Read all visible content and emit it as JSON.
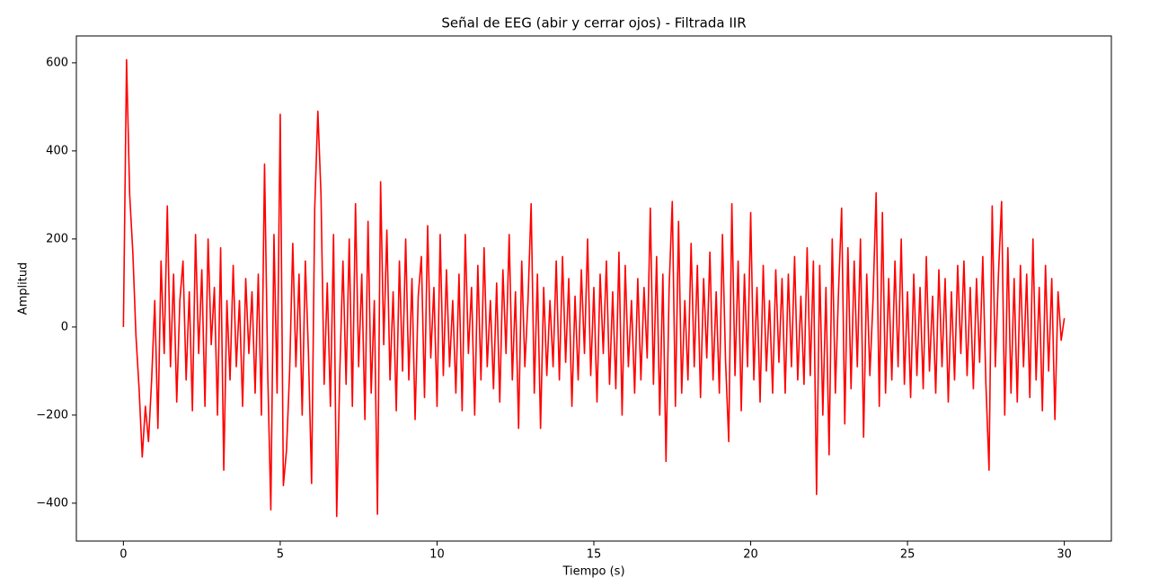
{
  "chart_data": {
    "type": "line",
    "title": "Señal de EEG (abir y cerrar ojos) - Filtrada IIR",
    "xlabel": "Tiempo (s)",
    "ylabel": "Amplitud",
    "xlim": [
      -1.5,
      31.5
    ],
    "ylim": [
      -486,
      661
    ],
    "xticks": [
      0,
      5,
      10,
      15,
      20,
      25,
      30
    ],
    "yticks": [
      {
        "value": -400,
        "label": "−400"
      },
      {
        "value": -200,
        "label": "−200"
      },
      0,
      200,
      400,
      600
    ],
    "grid": false,
    "x": [
      0,
      0.1,
      0.2,
      0.3,
      0.4,
      0.5,
      0.6,
      0.7,
      0.8,
      0.9,
      1,
      1.1,
      1.2,
      1.3,
      1.4,
      1.5,
      1.6,
      1.7,
      1.8,
      1.9,
      2,
      2.1,
      2.2,
      2.3,
      2.4,
      2.5,
      2.6,
      2.7,
      2.8,
      2.9,
      3,
      3.1,
      3.2,
      3.3,
      3.4,
      3.5,
      3.6,
      3.7,
      3.8,
      3.9,
      4,
      4.1,
      4.2,
      4.3,
      4.4,
      4.5,
      4.6,
      4.7,
      4.8,
      4.9,
      5,
      5.1,
      5.2,
      5.3,
      5.4,
      5.5,
      5.6,
      5.7,
      5.8,
      5.9,
      6,
      6.1,
      6.2,
      6.3,
      6.4,
      6.5,
      6.6,
      6.7,
      6.8,
      6.9,
      7,
      7.1,
      7.2,
      7.3,
      7.4,
      7.5,
      7.6,
      7.7,
      7.8,
      7.9,
      8,
      8.1,
      8.2,
      8.3,
      8.4,
      8.5,
      8.6,
      8.7,
      8.8,
      8.9,
      9,
      9.1,
      9.2,
      9.3,
      9.4,
      9.5,
      9.6,
      9.7,
      9.8,
      9.9,
      10,
      10.1,
      10.2,
      10.3,
      10.4,
      10.5,
      10.6,
      10.7,
      10.8,
      10.9,
      11,
      11.1,
      11.2,
      11.3,
      11.4,
      11.5,
      11.6,
      11.7,
      11.8,
      11.9,
      12,
      12.1,
      12.2,
      12.3,
      12.4,
      12.5,
      12.6,
      12.7,
      12.8,
      12.9,
      13,
      13.1,
      13.2,
      13.3,
      13.4,
      13.5,
      13.6,
      13.7,
      13.8,
      13.9,
      14,
      14.1,
      14.2,
      14.3,
      14.4,
      14.5,
      14.6,
      14.7,
      14.8,
      14.9,
      15,
      15.1,
      15.2,
      15.3,
      15.4,
      15.5,
      15.6,
      15.7,
      15.8,
      15.9,
      16,
      16.1,
      16.2,
      16.3,
      16.4,
      16.5,
      16.6,
      16.7,
      16.8,
      16.9,
      17,
      17.1,
      17.2,
      17.3,
      17.4,
      17.5,
      17.6,
      17.7,
      17.8,
      17.9,
      18,
      18.1,
      18.2,
      18.3,
      18.4,
      18.5,
      18.6,
      18.7,
      18.8,
      18.9,
      19,
      19.1,
      19.2,
      19.3,
      19.4,
      19.5,
      19.6,
      19.7,
      19.8,
      19.9,
      20,
      20.1,
      20.2,
      20.3,
      20.4,
      20.5,
      20.6,
      20.7,
      20.8,
      20.9,
      21,
      21.1,
      21.2,
      21.3,
      21.4,
      21.5,
      21.6,
      21.7,
      21.8,
      21.9,
      22,
      22.1,
      22.2,
      22.3,
      22.4,
      22.5,
      22.6,
      22.7,
      22.8,
      22.9,
      23,
      23.1,
      23.2,
      23.3,
      23.4,
      23.5,
      23.6,
      23.7,
      23.8,
      23.9,
      24,
      24.1,
      24.2,
      24.3,
      24.4,
      24.5,
      24.6,
      24.7,
      24.8,
      24.9,
      25,
      25.1,
      25.2,
      25.3,
      25.4,
      25.5,
      25.6,
      25.7,
      25.8,
      25.9,
      26,
      26.1,
      26.2,
      26.3,
      26.4,
      26.5,
      26.6,
      26.7,
      26.8,
      26.9,
      27,
      27.1,
      27.2,
      27.3,
      27.4,
      27.5,
      27.6,
      27.7,
      27.8,
      27.9,
      28,
      28.1,
      28.2,
      28.3,
      28.4,
      28.5,
      28.6,
      28.7,
      28.8,
      28.9,
      29,
      29.1,
      29.2,
      29.3,
      29.4,
      29.5,
      29.6,
      29.7,
      29.8,
      29.9,
      30
    ],
    "series": [
      {
        "color": "#ff0000",
        "values": [
          0,
          607,
          300,
          170,
          -20,
          -140,
          -295,
          -180,
          -260,
          -120,
          60,
          -230,
          150,
          -60,
          275,
          -90,
          120,
          -170,
          60,
          150,
          -120,
          80,
          -190,
          210,
          -60,
          130,
          -180,
          200,
          -40,
          90,
          -200,
          180,
          -325,
          60,
          -120,
          140,
          -90,
          60,
          -180,
          110,
          -60,
          80,
          -150,
          120,
          -200,
          370,
          -100,
          -415,
          210,
          -150,
          483,
          -360,
          -280,
          -100,
          190,
          -90,
          120,
          -200,
          150,
          -60,
          -355,
          270,
          490,
          300,
          -130,
          100,
          -180,
          210,
          -430,
          -100,
          150,
          -130,
          200,
          -180,
          280,
          -90,
          120,
          -210,
          240,
          -150,
          60,
          -425,
          330,
          -40,
          220,
          -120,
          80,
          -190,
          150,
          -100,
          200,
          -120,
          110,
          -210,
          70,
          160,
          -160,
          230,
          -70,
          90,
          -180,
          210,
          -110,
          130,
          -90,
          60,
          -150,
          120,
          -190,
          210,
          -60,
          90,
          -200,
          140,
          -120,
          180,
          -90,
          60,
          -140,
          100,
          -170,
          130,
          -60,
          210,
          -120,
          80,
          -230,
          150,
          -90,
          60,
          280,
          -150,
          120,
          -230,
          90,
          -110,
          60,
          -90,
          150,
          -120,
          160,
          -80,
          110,
          -180,
          70,
          -120,
          130,
          -60,
          200,
          -110,
          90,
          -170,
          120,
          -60,
          150,
          -130,
          80,
          -140,
          170,
          -200,
          140,
          -90,
          60,
          -150,
          110,
          -120,
          90,
          -70,
          270,
          -130,
          160,
          -200,
          120,
          -305,
          90,
          285,
          -180,
          240,
          -150,
          60,
          -120,
          190,
          -90,
          140,
          -160,
          110,
          -70,
          170,
          -120,
          80,
          -150,
          210,
          -80,
          -260,
          280,
          -110,
          150,
          -190,
          120,
          -90,
          260,
          -120,
          90,
          -170,
          140,
          -100,
          60,
          -150,
          130,
          -80,
          110,
          -150,
          120,
          -90,
          160,
          -120,
          70,
          -130,
          180,
          -110,
          150,
          -380,
          140,
          -200,
          90,
          -290,
          200,
          -150,
          80,
          270,
          -220,
          180,
          -140,
          150,
          -90,
          200,
          -250,
          120,
          -110,
          60,
          305,
          -180,
          260,
          -150,
          110,
          -120,
          150,
          -90,
          200,
          -130,
          80,
          -160,
          120,
          -110,
          90,
          -140,
          160,
          -100,
          70,
          -150,
          130,
          -90,
          110,
          -170,
          80,
          -120,
          140,
          -60,
          150,
          -110,
          90,
          -140,
          110,
          -80,
          160,
          -130,
          -325,
          275,
          -90,
          120,
          285,
          -200,
          180,
          -150,
          110,
          -170,
          140,
          -90,
          120,
          -160,
          200,
          -120,
          90,
          -190,
          140,
          -100,
          110,
          -210,
          80,
          -30,
          20
        ]
      }
    ]
  }
}
